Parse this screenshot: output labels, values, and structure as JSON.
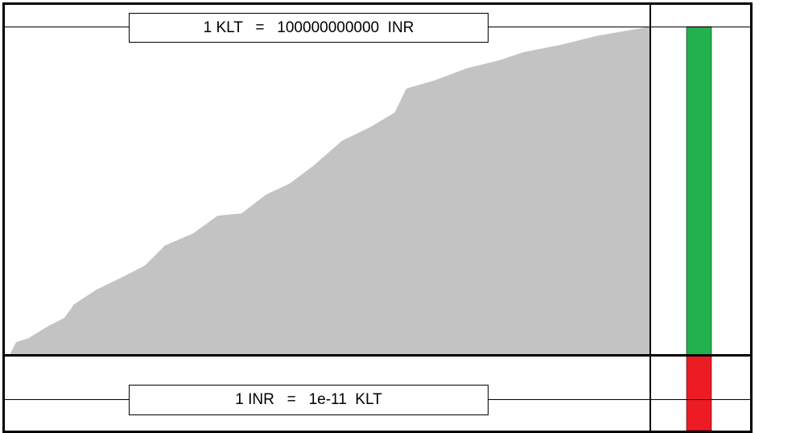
{
  "top_label": "1 KLT   =   100000000000  INR",
  "bottom_label": "1 INR   =   1e-11  KLT",
  "colors": {
    "area": "#c3c3c3",
    "green_bar": "#22b14c",
    "red_bar": "#ed1c24"
  },
  "chart_data": {
    "type": "area",
    "title": "",
    "xlabel": "",
    "ylabel": "",
    "grid": false,
    "ylim": [
      0,
      100
    ],
    "xlim": [
      0,
      100
    ],
    "x": [
      0.5,
      1.5,
      3.4,
      6.5,
      9,
      10.5,
      14,
      17.8,
      21.5,
      24.6,
      29,
      32.8,
      36.5,
      40.3,
      44,
      47.8,
      52.1,
      56.5,
      60.3,
      62.1,
      66.5,
      71.5,
      76.5,
      80.3,
      86.5,
      91.5,
      100
    ],
    "y": [
      0,
      3.9,
      5.1,
      8.8,
      11.3,
      15.4,
      19.9,
      23.5,
      27.2,
      33.3,
      37,
      42.4,
      43.1,
      48.8,
      52.2,
      57.8,
      65.2,
      69.4,
      73.8,
      81.1,
      83.6,
      87.3,
      89.7,
      92.2,
      94.6,
      97.1,
      100
    ],
    "bars": [
      {
        "color": "green",
        "fraction": 0.816
      },
      {
        "color": "red",
        "fraction": 0.184
      }
    ]
  }
}
